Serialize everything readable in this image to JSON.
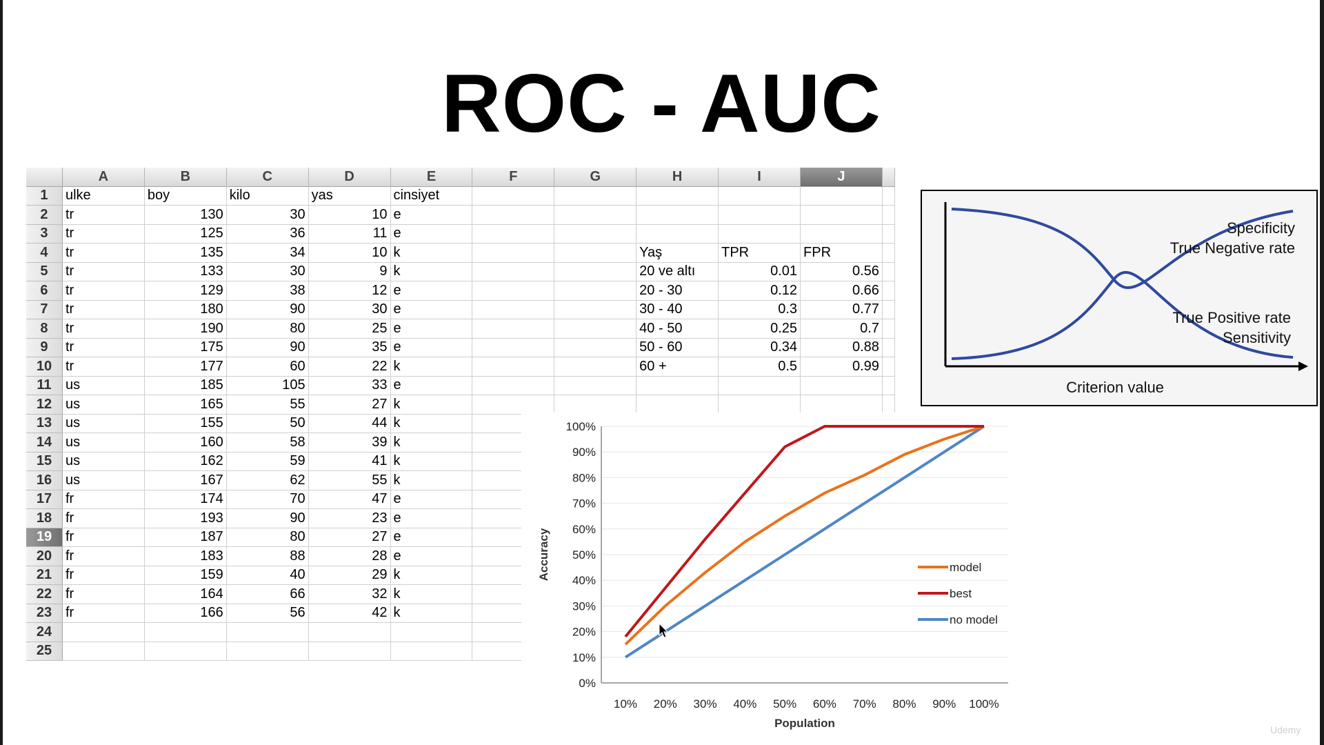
{
  "slide": {
    "title": "ROC - AUC"
  },
  "sheet": {
    "columns": [
      "A",
      "B",
      "C",
      "D",
      "E",
      "F",
      "G",
      "H",
      "I",
      "J"
    ],
    "selected_column": "J",
    "selected_row": "19",
    "rows": [
      {
        "n": "1",
        "a": "ulke",
        "b": "boy",
        "c": "kilo",
        "d": "yas",
        "e": "cinsiyet",
        "h": "",
        "i": "",
        "j": ""
      },
      {
        "n": "2",
        "a": "tr",
        "b": "130",
        "c": "30",
        "d": "10",
        "e": "e",
        "h": "",
        "i": "",
        "j": ""
      },
      {
        "n": "3",
        "a": "tr",
        "b": "125",
        "c": "36",
        "d": "11",
        "e": "e",
        "h": "",
        "i": "",
        "j": ""
      },
      {
        "n": "4",
        "a": "tr",
        "b": "135",
        "c": "34",
        "d": "10",
        "e": "k",
        "h": "Yaş",
        "i": "TPR",
        "j": "FPR"
      },
      {
        "n": "5",
        "a": "tr",
        "b": "133",
        "c": "30",
        "d": "9",
        "e": "k",
        "h": "20 ve altı",
        "i": "0.01",
        "j": "0.56"
      },
      {
        "n": "6",
        "a": "tr",
        "b": "129",
        "c": "38",
        "d": "12",
        "e": "e",
        "h": "20 - 30",
        "i": "0.12",
        "j": "0.66"
      },
      {
        "n": "7",
        "a": "tr",
        "b": "180",
        "c": "90",
        "d": "30",
        "e": "e",
        "h": "30 - 40",
        "i": "0.3",
        "j": "0.77"
      },
      {
        "n": "8",
        "a": "tr",
        "b": "190",
        "c": "80",
        "d": "25",
        "e": "e",
        "h": "40 - 50",
        "i": "0.25",
        "j": "0.7"
      },
      {
        "n": "9",
        "a": "tr",
        "b": "175",
        "c": "90",
        "d": "35",
        "e": "e",
        "h": "50 - 60",
        "i": "0.34",
        "j": "0.88"
      },
      {
        "n": "10",
        "a": "tr",
        "b": "177",
        "c": "60",
        "d": "22",
        "e": "k",
        "h": "60 +",
        "i": "0.5",
        "j": "0.99"
      },
      {
        "n": "11",
        "a": "us",
        "b": "185",
        "c": "105",
        "d": "33",
        "e": "e",
        "h": "",
        "i": "",
        "j": ""
      },
      {
        "n": "12",
        "a": "us",
        "b": "165",
        "c": "55",
        "d": "27",
        "e": "k",
        "h": "",
        "i": "",
        "j": ""
      },
      {
        "n": "13",
        "a": "us",
        "b": "155",
        "c": "50",
        "d": "44",
        "e": "k",
        "h": "",
        "i": "",
        "j": ""
      },
      {
        "n": "14",
        "a": "us",
        "b": "160",
        "c": "58",
        "d": "39",
        "e": "k",
        "h": "",
        "i": "",
        "j": ""
      },
      {
        "n": "15",
        "a": "us",
        "b": "162",
        "c": "59",
        "d": "41",
        "e": "k",
        "h": "",
        "i": "",
        "j": ""
      },
      {
        "n": "16",
        "a": "us",
        "b": "167",
        "c": "62",
        "d": "55",
        "e": "k",
        "h": "",
        "i": "",
        "j": ""
      },
      {
        "n": "17",
        "a": "fr",
        "b": "174",
        "c": "70",
        "d": "47",
        "e": "e",
        "h": "",
        "i": "",
        "j": ""
      },
      {
        "n": "18",
        "a": "fr",
        "b": "193",
        "c": "90",
        "d": "23",
        "e": "e",
        "h": "",
        "i": "",
        "j": ""
      },
      {
        "n": "19",
        "a": "fr",
        "b": "187",
        "c": "80",
        "d": "27",
        "e": "e",
        "h": "",
        "i": "",
        "j": ""
      },
      {
        "n": "20",
        "a": "fr",
        "b": "183",
        "c": "88",
        "d": "28",
        "e": "e",
        "h": "",
        "i": "",
        "j": ""
      },
      {
        "n": "21",
        "a": "fr",
        "b": "159",
        "c": "40",
        "d": "29",
        "e": "k",
        "h": "",
        "i": "",
        "j": ""
      },
      {
        "n": "22",
        "a": "fr",
        "b": "164",
        "c": "66",
        "d": "32",
        "e": "k",
        "h": "",
        "i": "",
        "j": ""
      },
      {
        "n": "23",
        "a": "fr",
        "b": "166",
        "c": "56",
        "d": "42",
        "e": "k",
        "h": "",
        "i": "",
        "j": ""
      },
      {
        "n": "24",
        "a": "",
        "b": "",
        "c": "",
        "d": "",
        "e": "",
        "h": "",
        "i": "",
        "j": ""
      },
      {
        "n": "25",
        "a": "",
        "b": "",
        "c": "",
        "d": "",
        "e": "",
        "h": "",
        "i": "",
        "j": ""
      }
    ]
  },
  "diagram": {
    "label_specificity": "Specificity",
    "label_tnr": "True Negative rate",
    "label_tpr": "True Positive rate",
    "label_sensitivity": "Sensitivity",
    "xlabel": "Criterion value",
    "curve_color": "#2e4a9e"
  },
  "watermark": "Udemy",
  "cursor_icon": "arrow-cursor-icon",
  "chart_data": {
    "type": "line",
    "xlabel": "Population",
    "ylabel": "Accuracy",
    "categories": [
      "10%",
      "20%",
      "30%",
      "40%",
      "50%",
      "60%",
      "70%",
      "80%",
      "90%",
      "100%"
    ],
    "x": [
      10,
      20,
      30,
      40,
      50,
      60,
      70,
      80,
      90,
      100
    ],
    "ylim": [
      0,
      100
    ],
    "yticks": [
      "0%",
      "10%",
      "20%",
      "30%",
      "40%",
      "50%",
      "60%",
      "70%",
      "80%",
      "90%",
      "100%"
    ],
    "grid": true,
    "legend_position": "right",
    "series": [
      {
        "name": "model",
        "color": "#e8731e",
        "values": [
          15,
          30,
          43,
          55,
          65,
          74,
          81,
          89,
          95,
          100
        ]
      },
      {
        "name": "best",
        "color": "#c0171c",
        "values": [
          18,
          37,
          56,
          74,
          92,
          100,
          100,
          100,
          100,
          100
        ]
      },
      {
        "name": "no model",
        "color": "#4f86c6",
        "values": [
          10,
          20,
          30,
          40,
          50,
          60,
          70,
          80,
          90,
          100
        ]
      }
    ]
  }
}
